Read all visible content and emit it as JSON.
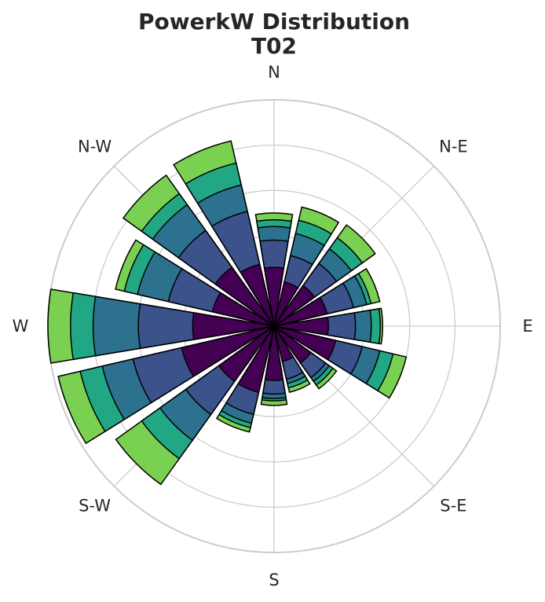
{
  "chart_data": {
    "type": "windrose",
    "title_line1": "PowerkW Distribution",
    "title_line2": "T02",
    "direction_labels": [
      "N",
      "N-E",
      "E",
      "S-E",
      "S",
      "S-W",
      "W",
      "N-W"
    ],
    "radial_max": 5,
    "radial_grid": [
      1,
      2,
      3,
      4,
      5
    ],
    "bin_colors": [
      "#440154",
      "#3b528b",
      "#2c728e",
      "#21a784",
      "#7ad151"
    ],
    "sectors": [
      {
        "angle": 0,
        "bins": [
          1.3,
          1.9,
          2.2,
          2.35,
          2.5
        ]
      },
      {
        "angle": 22.5,
        "bins": [
          1.0,
          1.6,
          2.1,
          2.4,
          2.7
        ]
      },
      {
        "angle": 45,
        "bins": [
          1.1,
          1.7,
          2.1,
          2.4,
          2.75
        ]
      },
      {
        "angle": 67.5,
        "bins": [
          1.2,
          1.8,
          2.1,
          2.2,
          2.4
        ]
      },
      {
        "angle": 90,
        "bins": [
          1.2,
          1.8,
          2.15,
          2.35,
          2.4
        ]
      },
      {
        "angle": 112.5,
        "bins": [
          1.4,
          2.0,
          2.4,
          2.7,
          3.0
        ]
      },
      {
        "angle": 135,
        "bins": [
          1.0,
          1.4,
          1.5,
          1.6,
          1.7
        ]
      },
      {
        "angle": 157.5,
        "bins": [
          0.8,
          1.2,
          1.3,
          1.4,
          1.5
        ]
      },
      {
        "angle": 180,
        "bins": [
          1.2,
          1.5,
          1.6,
          1.65,
          1.75
        ]
      },
      {
        "angle": 202.5,
        "bins": [
          1.5,
          2.0,
          2.2,
          2.3,
          2.4
        ]
      },
      {
        "angle": 225,
        "bins": [
          1.5,
          2.4,
          3.1,
          3.6,
          4.3
        ]
      },
      {
        "angle": 247.5,
        "bins": [
          2.1,
          3.2,
          3.9,
          4.4,
          4.9
        ]
      },
      {
        "angle": 270,
        "bins": [
          1.8,
          3.0,
          4.0,
          4.5,
          5.0
        ]
      },
      {
        "angle": 292.5,
        "bins": [
          1.4,
          2.4,
          3.1,
          3.4,
          3.6
        ]
      },
      {
        "angle": 315,
        "bins": [
          1.6,
          2.6,
          3.3,
          3.6,
          4.1
        ]
      },
      {
        "angle": 337.5,
        "bins": [
          1.4,
          2.6,
          3.2,
          3.7,
          4.2
        ]
      }
    ]
  }
}
